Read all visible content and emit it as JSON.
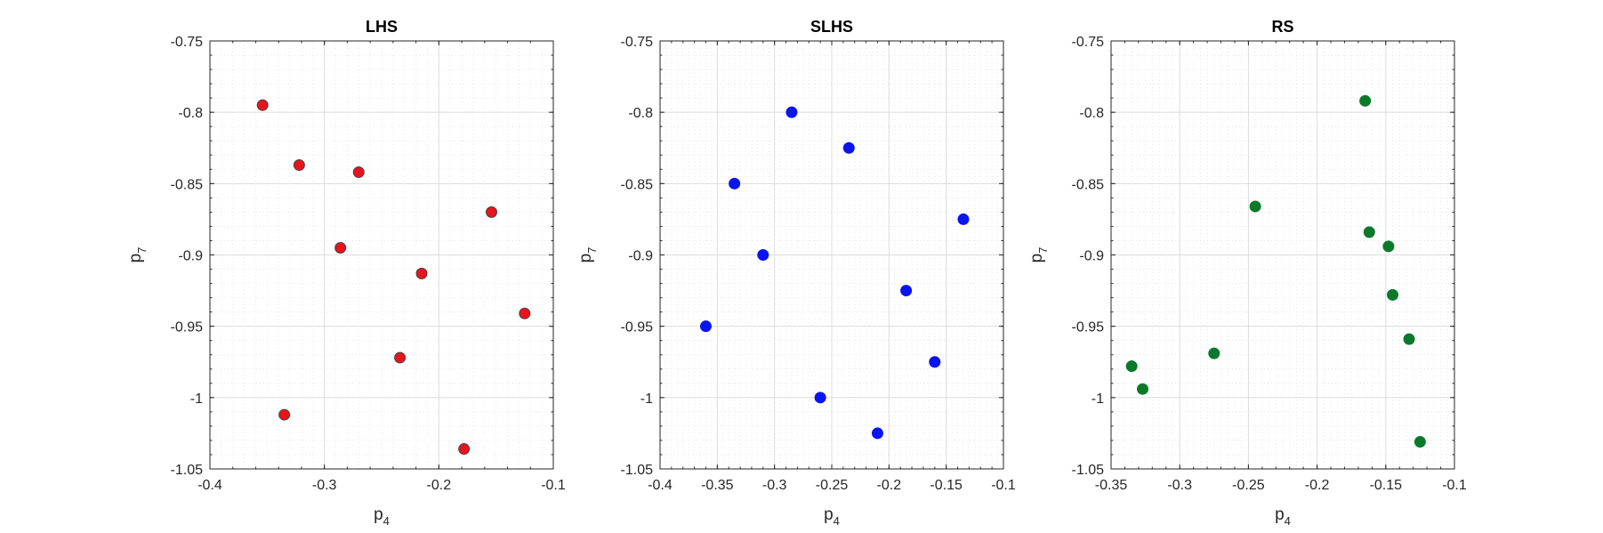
{
  "chart_data": [
    {
      "type": "scatter",
      "title": "LHS",
      "xlabel": {
        "base": "p",
        "sub": "4"
      },
      "ylabel": {
        "base": "p",
        "sub": "7"
      },
      "xlim": [
        -0.4,
        -0.1
      ],
      "ylim": [
        -1.05,
        -0.75
      ],
      "xticks": [
        -0.4,
        -0.3,
        -0.2,
        -0.1
      ],
      "yticks": [
        -0.75,
        -0.8,
        -0.85,
        -0.9,
        -0.95,
        -1,
        -1.05
      ],
      "xtick_labels": [
        "-0.4",
        "-0.3",
        "-0.2",
        "-0.1"
      ],
      "ytick_labels": [
        "-0.75",
        "-0.8",
        "-0.85",
        "-0.9",
        "-0.95",
        "-1",
        "-1.05"
      ],
      "grid": true,
      "minor_grid": true,
      "marker_color": "#e8141b",
      "marker_edge": "#444444",
      "points": [
        {
          "x": -0.354,
          "y": -0.795
        },
        {
          "x": -0.322,
          "y": -0.837
        },
        {
          "x": -0.27,
          "y": -0.842
        },
        {
          "x": -0.286,
          "y": -0.895
        },
        {
          "x": -0.154,
          "y": -0.87
        },
        {
          "x": -0.215,
          "y": -0.913
        },
        {
          "x": -0.125,
          "y": -0.941
        },
        {
          "x": -0.234,
          "y": -0.972
        },
        {
          "x": -0.335,
          "y": -1.012
        },
        {
          "x": -0.178,
          "y": -1.036
        }
      ]
    },
    {
      "type": "scatter",
      "title": "SLHS",
      "xlabel": {
        "base": "p",
        "sub": "4"
      },
      "ylabel": {
        "base": "p",
        "sub": "7"
      },
      "xlim": [
        -0.4,
        -0.1
      ],
      "ylim": [
        -1.05,
        -0.75
      ],
      "xticks": [
        -0.4,
        -0.35,
        -0.3,
        -0.25,
        -0.2,
        -0.15,
        -0.1
      ],
      "yticks": [
        -0.75,
        -0.8,
        -0.85,
        -0.9,
        -0.95,
        -1,
        -1.05
      ],
      "xtick_labels": [
        "-0.4",
        "-0.35",
        "-0.3",
        "-0.25",
        "-0.2",
        "-0.15",
        "-0.1"
      ],
      "ytick_labels": [
        "-0.75",
        "-0.8",
        "-0.85",
        "-0.9",
        "-0.95",
        "-1",
        "-1.05"
      ],
      "grid": true,
      "minor_grid": true,
      "marker_color": "#0a14f0",
      "marker_edge": "#0a14f0",
      "points": [
        {
          "x": -0.285,
          "y": -0.8
        },
        {
          "x": -0.235,
          "y": -0.825
        },
        {
          "x": -0.335,
          "y": -0.85
        },
        {
          "x": -0.135,
          "y": -0.875
        },
        {
          "x": -0.31,
          "y": -0.9
        },
        {
          "x": -0.185,
          "y": -0.925
        },
        {
          "x": -0.36,
          "y": -0.95
        },
        {
          "x": -0.16,
          "y": -0.975
        },
        {
          "x": -0.26,
          "y": -1.0
        },
        {
          "x": -0.21,
          "y": -1.025
        }
      ]
    },
    {
      "type": "scatter",
      "title": "RS",
      "xlabel": {
        "base": "p",
        "sub": "4"
      },
      "ylabel": {
        "base": "p",
        "sub": "7"
      },
      "xlim": [
        -0.35,
        -0.1
      ],
      "ylim": [
        -1.05,
        -0.75
      ],
      "xticks": [
        -0.35,
        -0.3,
        -0.25,
        -0.2,
        -0.15,
        -0.1
      ],
      "yticks": [
        -0.75,
        -0.8,
        -0.85,
        -0.9,
        -0.95,
        -1,
        -1.05
      ],
      "xtick_labels": [
        "-0.35",
        "-0.3",
        "-0.25",
        "-0.2",
        "-0.15",
        "-0.1"
      ],
      "ytick_labels": [
        "-0.75",
        "-0.8",
        "-0.85",
        "-0.9",
        "-0.95",
        "-1",
        "-1.05"
      ],
      "grid": true,
      "minor_grid": true,
      "marker_color": "#0a7a2a",
      "marker_edge": "#0a7a2a",
      "points": [
        {
          "x": -0.165,
          "y": -0.792
        },
        {
          "x": -0.245,
          "y": -0.866
        },
        {
          "x": -0.162,
          "y": -0.884
        },
        {
          "x": -0.148,
          "y": -0.894
        },
        {
          "x": -0.145,
          "y": -0.928
        },
        {
          "x": -0.133,
          "y": -0.959
        },
        {
          "x": -0.275,
          "y": -0.969
        },
        {
          "x": -0.335,
          "y": -0.978
        },
        {
          "x": -0.327,
          "y": -0.994
        },
        {
          "x": -0.125,
          "y": -1.031
        }
      ]
    }
  ]
}
